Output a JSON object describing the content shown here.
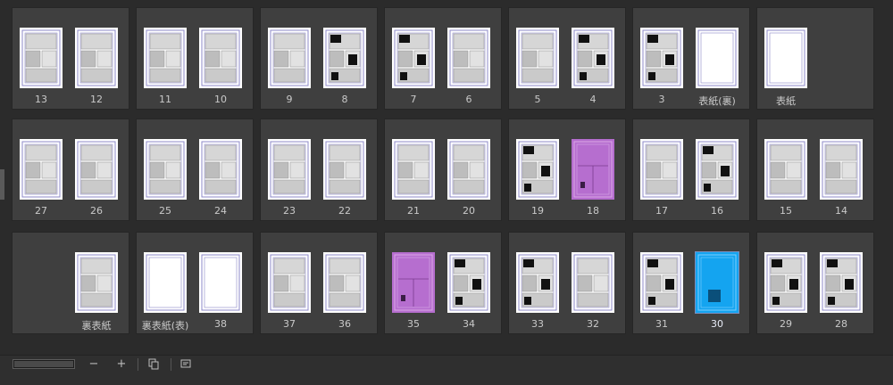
{
  "colors": {
    "panel_bg": "#2b2b2b",
    "spread_bg": "#3f3f3f",
    "label_text": "#c9c9c9",
    "guide_line": "#8d88c8",
    "selected_bg": "#5a6a8f",
    "magenta_page": "#b66ecf",
    "blue_page": "#14a4f0"
  },
  "rows": [
    [
      {
        "left": {
          "label": "13",
          "style": "manga"
        },
        "right": {
          "label": "12",
          "style": "manga"
        }
      },
      {
        "left": {
          "label": "11",
          "style": "manga"
        },
        "right": {
          "label": "10",
          "style": "manga"
        }
      },
      {
        "left": {
          "label": "9",
          "style": "manga"
        },
        "right": {
          "label": "8",
          "style": "dark"
        }
      },
      {
        "left": {
          "label": "7",
          "style": "dark"
        },
        "right": {
          "label": "6",
          "style": "manga"
        }
      },
      {
        "left": {
          "label": "5",
          "style": "manga"
        },
        "right": {
          "label": "4",
          "style": "dark"
        }
      },
      {
        "left": {
          "label": "3",
          "style": "dark"
        },
        "right": {
          "label": "表紙(裏)",
          "style": "blank"
        }
      },
      {
        "left": {
          "label": "表紙",
          "style": "blank"
        },
        "right": null
      }
    ],
    [
      {
        "left": {
          "label": "27",
          "style": "manga"
        },
        "right": {
          "label": "26",
          "style": "manga"
        }
      },
      {
        "left": {
          "label": "25",
          "style": "manga"
        },
        "right": {
          "label": "24",
          "style": "manga"
        }
      },
      {
        "left": {
          "label": "23",
          "style": "manga"
        },
        "right": {
          "label": "22",
          "style": "manga"
        }
      },
      {
        "left": {
          "label": "21",
          "style": "manga"
        },
        "right": {
          "label": "20",
          "style": "manga"
        }
      },
      {
        "left": {
          "label": "19",
          "style": "dark"
        },
        "right": {
          "label": "18",
          "style": "magenta"
        }
      },
      {
        "left": {
          "label": "17",
          "style": "manga"
        },
        "right": {
          "label": "16",
          "style": "dark"
        }
      },
      {
        "left": {
          "label": "15",
          "style": "manga"
        },
        "right": {
          "label": "14",
          "style": "manga"
        }
      }
    ],
    [
      {
        "left": null,
        "right": {
          "label": "裏表紙",
          "style": "manga"
        }
      },
      {
        "left": {
          "label": "裏表紙(表)",
          "style": "blank"
        },
        "right": {
          "label": "38",
          "style": "blank"
        }
      },
      {
        "left": {
          "label": "37",
          "style": "manga"
        },
        "right": {
          "label": "36",
          "style": "manga"
        }
      },
      {
        "left": {
          "label": "35",
          "style": "magenta"
        },
        "right": {
          "label": "34",
          "style": "dark"
        }
      },
      {
        "left": {
          "label": "33",
          "style": "dark"
        },
        "right": {
          "label": "32",
          "style": "manga"
        }
      },
      {
        "left": {
          "label": "31",
          "style": "dark"
        },
        "right": {
          "label": "30",
          "style": "blue",
          "selected": true
        }
      },
      {
        "left": {
          "label": "29",
          "style": "dark"
        },
        "right": {
          "label": "28",
          "style": "dark"
        }
      }
    ]
  ],
  "toolbar": {
    "zoom_out_label": "−",
    "zoom_in_label": "+",
    "zoom_out_icon": "minus-icon",
    "zoom_in_icon": "plus-icon",
    "duplicate_icon": "duplicate-page-icon",
    "settings_icon": "page-settings-icon"
  }
}
